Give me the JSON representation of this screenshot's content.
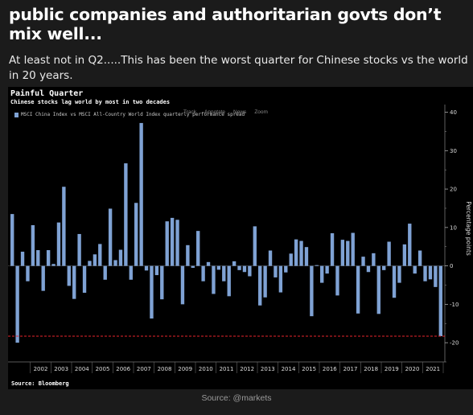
{
  "headline": "public companies and authoritarian govts don’t mix well...",
  "subhead": "At least not in Q2.....This has been the worst quarter for Chinese stocks vs the world in 20 years.",
  "credit": "Source: @markets",
  "toolbar": {
    "track": "Track",
    "annotate": "Annotate",
    "news": "News",
    "zoom": "Zoom"
  },
  "chart_data": {
    "type": "bar",
    "title": "Painful Quarter",
    "subtitle": "Chinese stocks lag world by most in two decades",
    "legend": "MSCI China Index vs MSCI All-Country World Index quarterly performance spread",
    "ylabel": "Percentage points",
    "source": "Source: Bloomberg",
    "ylim": [
      -25,
      42
    ],
    "yticks": [
      40,
      30,
      20,
      10,
      0,
      -10,
      -20
    ],
    "reference_line": -18.3,
    "years": [
      "2002",
      "2003",
      "2004",
      "2005",
      "2006",
      "2007",
      "2008",
      "2009",
      "2010",
      "2011",
      "2012",
      "2013",
      "2014",
      "2015",
      "2016",
      "2017",
      "2018",
      "2019",
      "2020",
      "2021"
    ],
    "x_start": "2001-Q1",
    "values": [
      13.5,
      -20,
      3.7,
      -4,
      10.6,
      4.1,
      -6.5,
      4.1,
      0.5,
      11.3,
      20.6,
      -5.2,
      -8.6,
      8.3,
      -7,
      1.3,
      3,
      5.7,
      -3.6,
      14.9,
      1.5,
      4.2,
      26.7,
      -3.6,
      16.4,
      37.2,
      -1.2,
      -13.7,
      -2.4,
      -8.7,
      11.6,
      12.5,
      12,
      -10,
      5.4,
      -0.5,
      9.1,
      -4,
      1,
      -7.3,
      -1,
      -4,
      -7.9,
      1.2,
      -1.1,
      -1.6,
      -2.7,
      10.3,
      -10.3,
      -8.2,
      4,
      -3,
      -6.9,
      -1.7,
      3.2,
      6.9,
      6.5,
      4.9,
      -13.1,
      0.2,
      -4.4,
      -2,
      8.5,
      -7.7,
      6.8,
      6.5,
      8.6,
      -12.4,
      2.4,
      -1.6,
      3.3,
      -12.5,
      -1.1,
      6.3,
      -8.3,
      -4.4,
      5.6,
      11,
      -2,
      4,
      -4,
      -3.5,
      -5.5,
      -18.3
    ]
  }
}
